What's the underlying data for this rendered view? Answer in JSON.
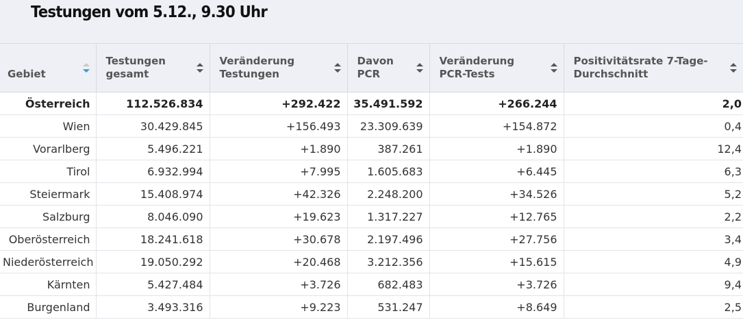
{
  "page": {
    "title": "Testungen vom 5.12., 9.30 Uhr"
  },
  "table": {
    "headers": [
      {
        "label": "Gebiet",
        "sort": "active",
        "sort_color": "#3b9bd9"
      },
      {
        "label": "Testungen gesamt",
        "sort": "none"
      },
      {
        "label": "Veränderung Testungen",
        "sort": "none"
      },
      {
        "label": "Davon PCR",
        "sort": "none"
      },
      {
        "label": "Veränderung PCR-Tests",
        "sort": "none"
      },
      {
        "label": "Positivitätsrate 7-Tage-Durchschnitt",
        "sort": "none"
      }
    ],
    "rows": [
      {
        "cells": [
          "Österreich",
          "112.526.834",
          "+292.422",
          "35.491.592",
          "+266.244",
          "2,0"
        ],
        "bold": true
      },
      {
        "cells": [
          "Wien",
          "30.429.845",
          "+156.493",
          "23.309.639",
          "+154.872",
          "0,4"
        ]
      },
      {
        "cells": [
          "Vorarlberg",
          "5.496.221",
          "+1.890",
          "387.261",
          "+1.890",
          "12,4"
        ]
      },
      {
        "cells": [
          "Tirol",
          "6.932.994",
          "+7.995",
          "1.605.683",
          "+6.445",
          "6,3"
        ]
      },
      {
        "cells": [
          "Steiermark",
          "15.408.974",
          "+42.326",
          "2.248.200",
          "+34.526",
          "5,2"
        ]
      },
      {
        "cells": [
          "Salzburg",
          "8.046.090",
          "+19.623",
          "1.317.227",
          "+12.765",
          "2,2"
        ]
      },
      {
        "cells": [
          "Oberösterreich",
          "18.241.618",
          "+30.678",
          "2.197.496",
          "+27.756",
          "3,4"
        ]
      },
      {
        "cells": [
          "Niederösterreich",
          "19.050.292",
          "+20.468",
          "3.212.356",
          "+15.615",
          "4,9"
        ]
      },
      {
        "cells": [
          "Kärnten",
          "5.427.484",
          "+3.726",
          "682.483",
          "+3.726",
          "9,4"
        ]
      },
      {
        "cells": [
          "Burgenland",
          "3.493.316",
          "+9.223",
          "531.247",
          "+8.649",
          "2,5"
        ]
      }
    ]
  },
  "colors": {
    "header_bg": "#eef0f5",
    "sort_active": "#3b9bd9",
    "sort_inactive": "#555555"
  }
}
